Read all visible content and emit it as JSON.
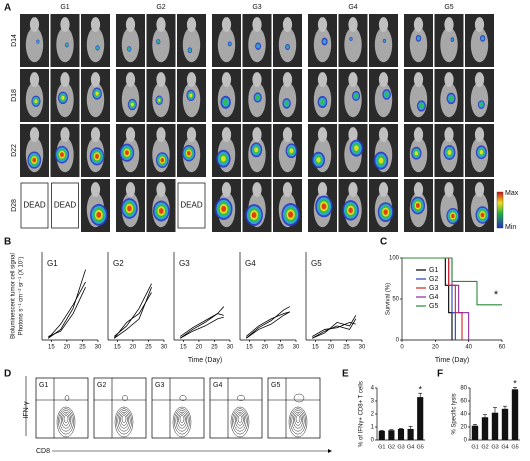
{
  "panel_labels": [
    "A",
    "B",
    "C",
    "D",
    "E",
    "F"
  ],
  "imaging": {
    "groups": [
      "G1",
      "G2",
      "G3",
      "G4",
      "G5"
    ],
    "days": [
      "D14",
      "D18",
      "D22",
      "D28"
    ],
    "dead_label": "DEAD",
    "colorbar": {
      "max": "Max",
      "min": "Min"
    }
  },
  "panel_b": {
    "y_label_lines": [
      "Bioluminescent tumor cell signal",
      "Photons s⁻¹ cm⁻² sr⁻¹ (X 10⁷)"
    ],
    "x_label": "Time (Day)"
  },
  "flow": {
    "groups": [
      "G1",
      "G2",
      "G3",
      "G4",
      "G5"
    ],
    "y_label": "IFN-γ",
    "x_label": "CD8"
  },
  "chart_data": [
    {
      "type": "line",
      "title": "G1",
      "xlim": [
        12,
        30
      ],
      "ylim": [
        0,
        5
      ],
      "xticks": [
        15,
        20,
        25,
        30
      ],
      "series": [
        {
          "color": "#000",
          "x": [
            14,
            18,
            22,
            26
          ],
          "values": [
            0.1,
            0.6,
            1.8,
            4.0
          ]
        },
        {
          "color": "#000",
          "x": [
            14,
            18,
            22,
            26
          ],
          "values": [
            0.1,
            0.9,
            2.0,
            3.3
          ]
        },
        {
          "color": "#000",
          "x": [
            14,
            18,
            22,
            26
          ],
          "values": [
            0.2,
            0.5,
            1.5,
            3.0
          ]
        }
      ]
    },
    {
      "type": "line",
      "title": "G2",
      "xlim": [
        12,
        30
      ],
      "ylim": [
        0,
        5
      ],
      "xticks": [
        15,
        20,
        25,
        30
      ],
      "series": [
        {
          "color": "#000",
          "x": [
            14,
            18,
            22,
            26
          ],
          "values": [
            0.2,
            0.8,
            1.8,
            3.2
          ]
        },
        {
          "color": "#000",
          "x": [
            14,
            18,
            22,
            26
          ],
          "values": [
            0.1,
            1.0,
            1.5,
            2.7
          ]
        },
        {
          "color": "#000",
          "x": [
            14,
            18,
            22,
            26
          ],
          "values": [
            0.1,
            0.6,
            1.2,
            3.0
          ]
        }
      ]
    },
    {
      "type": "line",
      "title": "G3",
      "xlim": [
        12,
        30
      ],
      "ylim": [
        0,
        5
      ],
      "xticks": [
        15,
        20,
        25,
        30
      ],
      "series": [
        {
          "color": "#000",
          "x": [
            14,
            18,
            22,
            26,
            28
          ],
          "values": [
            0.1,
            0.6,
            1.0,
            1.5,
            1.9
          ]
        },
        {
          "color": "#000",
          "x": [
            14,
            18,
            22,
            26,
            28
          ],
          "values": [
            0.1,
            0.5,
            0.8,
            1.2,
            1.3
          ]
        },
        {
          "color": "#000",
          "x": [
            14,
            18,
            22,
            26,
            28
          ],
          "values": [
            0.2,
            0.7,
            1.1,
            1.5,
            1.4
          ]
        }
      ]
    },
    {
      "type": "line",
      "title": "G4",
      "xlim": [
        12,
        30
      ],
      "ylim": [
        0,
        5
      ],
      "xticks": [
        15,
        20,
        25,
        30
      ],
      "series": [
        {
          "color": "#000",
          "x": [
            14,
            18,
            22,
            26,
            28
          ],
          "values": [
            0.1,
            0.7,
            1.1,
            1.7,
            1.9
          ]
        },
        {
          "color": "#000",
          "x": [
            14,
            18,
            22,
            26,
            28
          ],
          "values": [
            0.2,
            0.8,
            1.2,
            1.5,
            1.6
          ]
        },
        {
          "color": "#000",
          "x": [
            14,
            18,
            22,
            26,
            28
          ],
          "values": [
            0.1,
            0.6,
            0.9,
            1.4,
            1.6
          ]
        }
      ]
    },
    {
      "type": "line",
      "title": "G5",
      "xlim": [
        12,
        30
      ],
      "ylim": [
        0,
        5
      ],
      "xticks": [
        15,
        20,
        25,
        30
      ],
      "series": [
        {
          "color": "#000",
          "x": [
            14,
            18,
            22,
            26,
            28
          ],
          "values": [
            0.1,
            0.5,
            0.8,
            0.6,
            1.2
          ]
        },
        {
          "color": "#000",
          "x": [
            14,
            18,
            22,
            26,
            28
          ],
          "values": [
            0.2,
            0.6,
            0.7,
            1.0,
            0.9
          ]
        },
        {
          "color": "#000",
          "x": [
            14,
            18,
            22,
            26,
            28
          ],
          "values": [
            0.1,
            0.4,
            1.0,
            0.8,
            1.4
          ]
        }
      ]
    },
    {
      "type": "step",
      "y_label": "Survival (%)",
      "x_label": "Time (Day)",
      "annotation": "*",
      "xlim": [
        0,
        60
      ],
      "ylim": [
        0,
        100
      ],
      "xticks": [
        0,
        20,
        40,
        60
      ],
      "yticks": [
        0,
        50,
        100
      ],
      "series": [
        {
          "name": "G1",
          "color": "#000000",
          "x": [
            0,
            26,
            28,
            30
          ],
          "values": [
            100,
            66.7,
            33.3,
            0
          ]
        },
        {
          "name": "G2",
          "color": "#1f3fbf",
          "x": [
            0,
            28,
            30,
            32
          ],
          "values": [
            100,
            66.7,
            33.3,
            0
          ]
        },
        {
          "name": "G3",
          "color": "#d42020",
          "x": [
            0,
            28,
            32,
            36
          ],
          "values": [
            100,
            66.7,
            33.3,
            0
          ]
        },
        {
          "name": "G4",
          "color": "#8a2a9a",
          "x": [
            0,
            30,
            34,
            40
          ],
          "values": [
            100,
            66.7,
            33.3,
            0
          ]
        },
        {
          "name": "G5",
          "color": "#2a8a3a",
          "x": [
            0,
            30,
            45,
            60
          ],
          "values": [
            100,
            71.4,
            42.9,
            42.9
          ]
        }
      ]
    },
    {
      "type": "bar",
      "y_label": "% of IFNγ+ CD8+ T cells",
      "annotation": "*",
      "color": "#111",
      "categories": [
        "G1",
        "G2",
        "G3",
        "G4",
        "G5"
      ],
      "values": [
        0.7,
        0.75,
        0.85,
        0.85,
        3.3
      ],
      "errors": [
        0.05,
        0.05,
        0.05,
        0.2,
        0.3
      ],
      "ylim": [
        0,
        4
      ],
      "yticks": [
        0,
        1,
        2,
        3,
        4
      ]
    },
    {
      "type": "bar",
      "y_label": "% Specific lysis",
      "annotation": "*",
      "color": "#111",
      "categories": [
        "G1",
        "G2",
        "G3",
        "G4",
        "G5"
      ],
      "values": [
        22,
        35,
        42,
        48,
        78
      ],
      "errors": [
        2,
        4,
        8,
        4,
        3
      ],
      "ylim": [
        0,
        80
      ],
      "yticks": [
        0,
        20,
        40,
        60,
        80
      ]
    }
  ]
}
